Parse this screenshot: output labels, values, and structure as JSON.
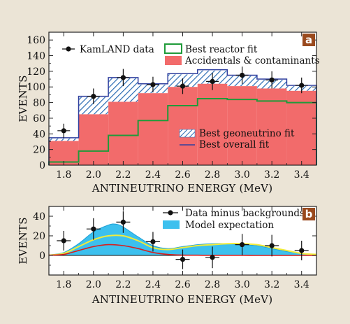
{
  "colors": {
    "background": "#ebe4d6",
    "plot_bg": "#ffffff",
    "reactor": "#1f9b3a",
    "accidentals": "#f26b6b",
    "geoneutrino_hatch": "#2a6bb3",
    "overall": "#2f3f9e",
    "model": "#3cc0ee",
    "yellow_curve": "#f2ec3a",
    "red_curve": "#d81e1e",
    "badge": "#9a4a1e"
  },
  "chart_data": [
    {
      "type": "bar",
      "panel": "a",
      "xlabel": "ANTINEUTRINO ENERGY (MeV)",
      "ylabel": "EVENTS",
      "xlim": [
        1.7,
        3.5
      ],
      "ylim": [
        0,
        170
      ],
      "xticks": [
        "1.8",
        "2.0",
        "2.2",
        "2.4",
        "2.6",
        "2.8",
        "3.0",
        "3.2",
        "3.4"
      ],
      "yticks": [
        "0",
        "20",
        "40",
        "60",
        "80",
        "100",
        "120",
        "140",
        "160"
      ],
      "bin_edges": [
        1.7,
        1.9,
        2.1,
        2.3,
        2.5,
        2.7,
        2.9,
        3.1,
        3.3,
        3.5
      ],
      "series": [
        {
          "name": "Accidentals & contaminants",
          "values": [
            31,
            65,
            81,
            92,
            100,
            104,
            101,
            98,
            95
          ]
        },
        {
          "name": "Best reactor fit",
          "values": [
            4,
            18,
            38,
            57,
            76,
            85,
            84,
            82,
            80
          ]
        },
        {
          "name": "Best geoneutrino fit",
          "values": [
            34,
            87,
            111,
            103,
            116,
            121,
            114,
            109,
            101
          ]
        },
        {
          "name": "Best overall fit",
          "values": [
            35,
            88,
            112,
            104,
            117,
            122,
            115,
            110,
            102
          ]
        },
        {
          "name": "KamLAND data",
          "x": [
            1.8,
            2.0,
            2.2,
            2.4,
            2.6,
            2.8,
            3.0,
            3.2,
            3.4
          ],
          "y": [
            44,
            88,
            112,
            103,
            101,
            107,
            115,
            109,
            102
          ],
          "err": [
            9,
            10,
            11,
            10,
            10,
            11,
            11,
            11,
            10
          ]
        }
      ],
      "legend": {
        "top": [
          "KamLAND data",
          "Best reactor fit",
          "Accidentals & contaminants"
        ],
        "bottom": [
          "Best geoneutrino fit",
          "Best overall fit"
        ]
      },
      "badge": "a"
    },
    {
      "type": "line",
      "panel": "b",
      "xlabel": "ANTINEUTRINO ENERGY (MeV)",
      "ylabel": "EVENTS",
      "xlim": [
        1.7,
        3.5
      ],
      "ylim": [
        -20,
        50
      ],
      "xticks": [
        "1.8",
        "2.0",
        "2.2",
        "2.4",
        "2.6",
        "2.8",
        "3.0",
        "3.2",
        "3.4"
      ],
      "yticks": [
        "0",
        "20",
        "40"
      ],
      "series": [
        {
          "name": "Data minus backgrounds",
          "x": [
            1.8,
            2.0,
            2.2,
            2.4,
            2.6,
            2.8,
            3.0,
            3.2,
            3.4
          ],
          "y": [
            15,
            27,
            34,
            14,
            -4,
            -2,
            11,
            10,
            5
          ],
          "err": [
            10,
            11,
            11,
            10,
            10,
            11,
            11,
            11,
            10
          ]
        },
        {
          "name": "Model expectation",
          "x": [
            1.7,
            1.8,
            1.9,
            2.0,
            2.1,
            2.15,
            2.2,
            2.3,
            2.4,
            2.5,
            2.6,
            2.7,
            2.8,
            2.9,
            3.0,
            3.1,
            3.2,
            3.3,
            3.4,
            3.5
          ],
          "y": [
            0.5,
            3,
            12,
            24,
            31,
            32,
            29,
            19,
            10,
            7,
            9,
            11,
            12,
            12,
            11,
            10,
            7,
            4,
            2,
            1
          ]
        },
        {
          "x": [
            1.7,
            1.8,
            1.9,
            2.0,
            2.1,
            2.2,
            2.3,
            2.4,
            2.5,
            2.6,
            2.7,
            2.8,
            2.9,
            3.0,
            3.1,
            3.2,
            3.3,
            3.4,
            3.5
          ],
          "y": [
            0.3,
            2,
            9,
            16,
            20,
            20,
            15,
            8,
            6,
            8,
            10,
            11,
            12,
            12,
            11,
            8,
            5,
            2,
            1
          ],
          "color": "yellow_curve"
        },
        {
          "x": [
            1.7,
            1.8,
            1.9,
            2.0,
            2.1,
            2.2,
            2.3,
            2.4,
            2.5,
            2.6,
            2.7,
            2.8,
            2.9,
            3.0,
            3.1,
            3.2,
            3.3,
            3.4,
            3.5
          ],
          "y": [
            0.2,
            1,
            5,
            9,
            11,
            10,
            7,
            3,
            1,
            0.3,
            0.2,
            0.1,
            0.1,
            0.1,
            0,
            0,
            0,
            0,
            0
          ],
          "color": "red_curve"
        }
      ],
      "legend": [
        "Data minus backgrounds",
        "Model expectation"
      ],
      "badge": "b"
    }
  ]
}
